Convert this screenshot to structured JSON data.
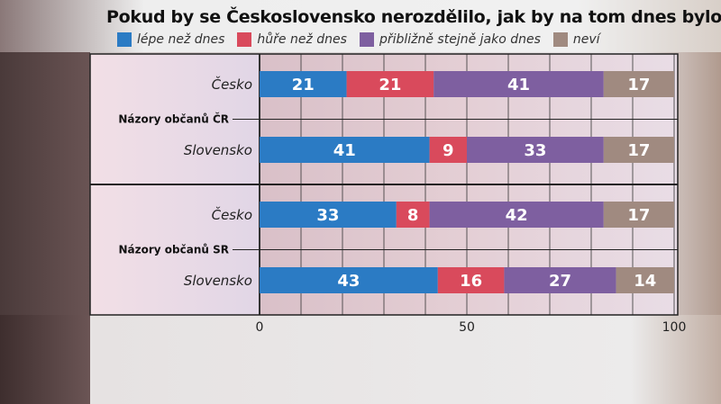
{
  "chart_data": {
    "type": "bar",
    "stacked": true,
    "orientation": "horizontal",
    "title": "Pokud by se Československo nerozdělilo, jak by na tom dnes bylo?",
    "xlim": [
      0,
      100
    ],
    "xticks": [
      "0",
      "50",
      "100"
    ],
    "grid": true,
    "legend_position": "top",
    "groups": [
      {
        "label": "Názory občanů ČR",
        "categories": [
          "Česko",
          "Slovensko"
        ]
      },
      {
        "label": "Názory občanů SR",
        "categories": [
          "Česko",
          "Slovensko"
        ]
      }
    ],
    "series": [
      {
        "name": "lépe než dnes",
        "color": "#2b7bc4",
        "values": [
          21,
          41,
          33,
          43
        ]
      },
      {
        "name": "hůře než dnes",
        "color": "#d94a5c",
        "values": [
          21,
          9,
          8,
          16
        ]
      },
      {
        "name": "přibližně stejně jako dnes",
        "color": "#7e5fa0",
        "values": [
          41,
          33,
          42,
          27
        ]
      },
      {
        "name": "neví",
        "color": "#a08a80",
        "values": [
          17,
          17,
          17,
          14
        ]
      }
    ]
  }
}
